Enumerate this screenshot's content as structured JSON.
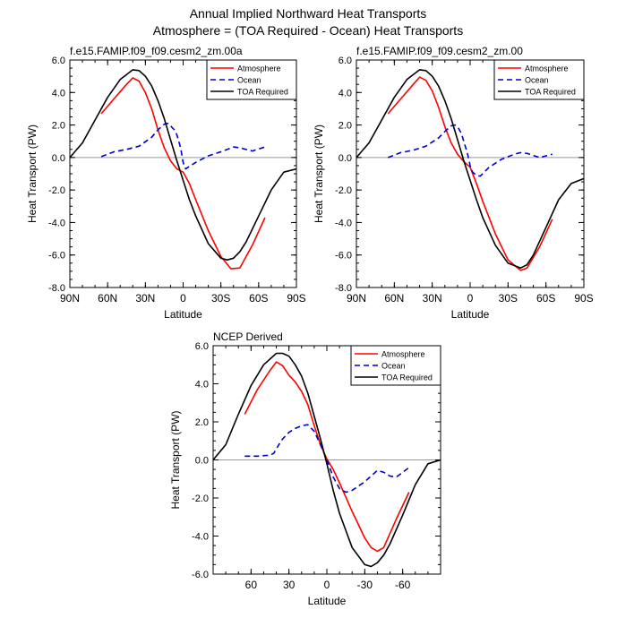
{
  "figure": {
    "title_line1": "Annual Implied Northward Heat Transports",
    "title_line2": "Atmosphere = (TOA Required - Ocean) Heat Transports"
  },
  "colors": {
    "atmosphere": "#ff0000",
    "ocean": "#0000cc",
    "toa": "#000000",
    "zero_line": "#999999"
  },
  "chart_data": [
    {
      "type": "line",
      "title": "f.e15.FAMIP.f09_f09.cesm2_zm.00a",
      "xlabel": "Latitude",
      "ylabel": "Heat Transport (PW)",
      "xlim": [
        90,
        -90
      ],
      "ylim": [
        -8,
        6
      ],
      "x_ticks": [
        90,
        60,
        30,
        0,
        -30,
        -60,
        -90
      ],
      "x_tick_labels": [
        "90N",
        "60N",
        "30N",
        "0",
        "30S",
        "60S",
        "90S"
      ],
      "y_ticks": [
        -8,
        -6,
        -4,
        -2,
        0,
        2,
        4,
        6
      ],
      "y_tick_labels": [
        "-8.0",
        "-6.0",
        "-4.0",
        "-2.0",
        "0.0",
        "2.0",
        "4.0",
        "6.0"
      ],
      "legend": "top-right",
      "series": [
        {
          "name": "Atmosphere",
          "style": "solid",
          "color": "#ff0000",
          "x": [
            65,
            55,
            45,
            40,
            35,
            30,
            25,
            20,
            15,
            10,
            5,
            0,
            -5,
            -10,
            -20,
            -30,
            -38,
            -45,
            -55,
            -65
          ],
          "y": [
            2.7,
            3.6,
            4.5,
            4.9,
            4.7,
            4.0,
            3.0,
            1.7,
            0.6,
            -0.2,
            -0.7,
            -0.9,
            -1.6,
            -2.6,
            -4.5,
            -6.1,
            -6.85,
            -6.8,
            -5.4,
            -3.7
          ]
        },
        {
          "name": "Ocean",
          "style": "dashed",
          "color": "#0000cc",
          "x": [
            65,
            55,
            45,
            35,
            25,
            20,
            15,
            12,
            10,
            7,
            5,
            2,
            0,
            -2,
            -5,
            -10,
            -20,
            -30,
            -40,
            -45,
            -50,
            -55,
            -65
          ],
          "y": [
            0.05,
            0.35,
            0.5,
            0.7,
            1.25,
            1.7,
            2.05,
            2.1,
            1.95,
            1.7,
            1.4,
            0.6,
            -0.3,
            -0.7,
            -0.55,
            -0.3,
            0.1,
            0.35,
            0.65,
            0.6,
            0.5,
            0.4,
            0.65
          ]
        },
        {
          "name": "TOA Required",
          "style": "solid",
          "color": "#000000",
          "x": [
            90,
            80,
            70,
            60,
            50,
            40,
            35,
            30,
            25,
            20,
            15,
            10,
            5,
            0,
            -5,
            -10,
            -20,
            -30,
            -35,
            -40,
            -45,
            -50,
            -60,
            -70,
            -80,
            -90
          ],
          "y": [
            0.0,
            0.9,
            2.3,
            3.7,
            4.8,
            5.4,
            5.35,
            5.0,
            4.4,
            3.5,
            2.4,
            1.1,
            -0.2,
            -1.4,
            -2.6,
            -3.6,
            -5.3,
            -6.2,
            -6.3,
            -6.2,
            -5.8,
            -5.2,
            -3.6,
            -2.0,
            -0.9,
            -0.7
          ]
        }
      ]
    },
    {
      "type": "line",
      "title": "f.e15.FAMIP.f09_f09.cesm2_zm.00",
      "xlabel": "Latitude",
      "ylabel": "Heat Transport (PW)",
      "xlim": [
        90,
        -90
      ],
      "ylim": [
        -8,
        6
      ],
      "x_ticks": [
        90,
        60,
        30,
        0,
        -30,
        -60,
        -90
      ],
      "x_tick_labels": [
        "90N",
        "60N",
        "30N",
        "0",
        "30S",
        "60S",
        "90S"
      ],
      "y_ticks": [
        -8,
        -6,
        -4,
        -2,
        0,
        2,
        4,
        6
      ],
      "y_tick_labels": [
        "-8.0",
        "-6.0",
        "-4.0",
        "-2.0",
        "0.0",
        "2.0",
        "4.0",
        "6.0"
      ],
      "legend": "top-right",
      "series": [
        {
          "name": "Atmosphere",
          "style": "solid",
          "color": "#ff0000",
          "x": [
            65,
            55,
            45,
            40,
            35,
            30,
            25,
            20,
            15,
            10,
            5,
            0,
            -5,
            -10,
            -20,
            -30,
            -40,
            -45,
            -55,
            -65
          ],
          "y": [
            2.7,
            3.6,
            4.5,
            4.95,
            4.75,
            4.1,
            3.1,
            1.9,
            0.9,
            0.2,
            -0.25,
            -0.6,
            -1.6,
            -2.7,
            -4.7,
            -6.3,
            -6.95,
            -6.8,
            -5.5,
            -3.8
          ]
        },
        {
          "name": "Ocean",
          "style": "dashed",
          "color": "#0000cc",
          "x": [
            65,
            55,
            45,
            35,
            25,
            20,
            15,
            12,
            10,
            7,
            5,
            2,
            0,
            -2,
            -5,
            -8,
            -15,
            -25,
            -35,
            -40,
            -45,
            -55,
            -60,
            -65
          ],
          "y": [
            0.0,
            0.3,
            0.45,
            0.7,
            1.2,
            1.6,
            1.95,
            2.0,
            1.9,
            1.5,
            1.0,
            0.2,
            -0.5,
            -0.9,
            -1.1,
            -1.15,
            -0.6,
            -0.1,
            0.2,
            0.3,
            0.25,
            0.0,
            0.1,
            0.2
          ]
        },
        {
          "name": "TOA Required",
          "style": "solid",
          "color": "#000000",
          "x": [
            90,
            80,
            70,
            60,
            50,
            40,
            35,
            30,
            25,
            20,
            15,
            10,
            5,
            0,
            -5,
            -10,
            -20,
            -30,
            -40,
            -45,
            -50,
            -60,
            -70,
            -80,
            -90
          ],
          "y": [
            0.0,
            0.9,
            2.3,
            3.7,
            4.8,
            5.4,
            5.35,
            5.0,
            4.4,
            3.5,
            2.4,
            1.1,
            -0.2,
            -1.4,
            -2.6,
            -3.7,
            -5.4,
            -6.5,
            -6.8,
            -6.6,
            -6.0,
            -4.3,
            -2.6,
            -1.6,
            -1.3
          ]
        }
      ]
    },
    {
      "type": "line",
      "title": "NCEP Derived",
      "xlabel": "Latitude",
      "ylabel": "Heat Transport (PW)",
      "xlim": [
        90,
        -90
      ],
      "ylim": [
        -6,
        6
      ],
      "x_ticks": [
        60,
        30,
        0,
        -30,
        -60
      ],
      "x_tick_labels": [
        "60",
        "30",
        "0",
        "-30",
        "-60"
      ],
      "y_ticks": [
        -6,
        -4,
        -2,
        0,
        2,
        4,
        6
      ],
      "y_tick_labels": [
        "-6.0",
        "-4.0",
        "-2.0",
        "0.0",
        "2.0",
        "4.0",
        "6.0"
      ],
      "legend": "top-right",
      "series": [
        {
          "name": "Atmosphere",
          "style": "solid",
          "color": "#ff0000",
          "x": [
            65,
            55,
            45,
            40,
            35,
            30,
            25,
            20,
            15,
            10,
            5,
            0,
            -5,
            -10,
            -20,
            -30,
            -35,
            -40,
            -45,
            -55,
            -65
          ],
          "y": [
            2.4,
            3.7,
            4.7,
            5.15,
            4.95,
            4.45,
            4.1,
            3.6,
            2.9,
            1.8,
            0.8,
            0.05,
            -0.5,
            -1.2,
            -2.7,
            -4.1,
            -4.6,
            -4.8,
            -4.6,
            -3.1,
            -1.7
          ]
        },
        {
          "name": "Ocean",
          "style": "dashed",
          "color": "#0000cc",
          "x": [
            65,
            55,
            45,
            42,
            38,
            35,
            30,
            25,
            20,
            15,
            10,
            5,
            0,
            -5,
            -10,
            -15,
            -20,
            -30,
            -35,
            -40,
            -45,
            -50,
            -55,
            -60,
            -65
          ],
          "y": [
            0.2,
            0.2,
            0.25,
            0.35,
            0.8,
            1.1,
            1.45,
            1.65,
            1.8,
            1.85,
            1.5,
            0.8,
            0.0,
            -0.9,
            -1.5,
            -1.7,
            -1.6,
            -1.15,
            -0.85,
            -0.55,
            -0.65,
            -0.85,
            -0.9,
            -0.65,
            -0.4
          ]
        },
        {
          "name": "TOA Required",
          "style": "solid",
          "color": "#000000",
          "x": [
            90,
            80,
            70,
            60,
            50,
            40,
            35,
            30,
            25,
            20,
            15,
            10,
            5,
            0,
            -5,
            -10,
            -20,
            -30,
            -35,
            -40,
            -45,
            -50,
            -60,
            -70,
            -80,
            -90
          ],
          "y": [
            0.0,
            0.8,
            2.4,
            3.9,
            5.0,
            5.6,
            5.6,
            5.45,
            5.0,
            4.4,
            3.5,
            2.3,
            1.1,
            -0.2,
            -1.6,
            -2.8,
            -4.6,
            -5.5,
            -5.6,
            -5.4,
            -5.0,
            -4.4,
            -2.9,
            -1.3,
            -0.2,
            0.0
          ]
        }
      ]
    }
  ]
}
